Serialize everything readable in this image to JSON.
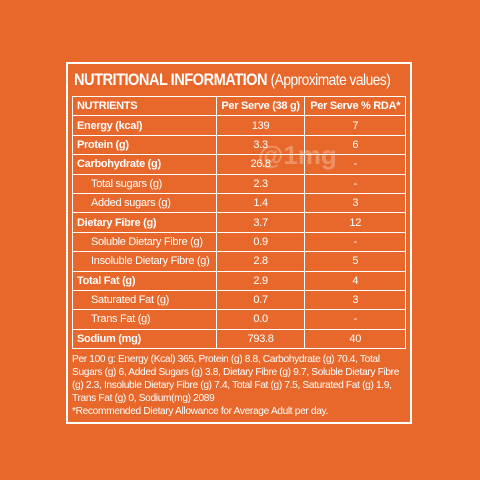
{
  "header": {
    "title": "NUTRITIONAL INFORMATION",
    "subtitle": "(Approximate values)"
  },
  "table": {
    "columns": [
      "NUTRIENTS",
      "Per Serve (38 g)",
      "Per Serve % RDA*"
    ],
    "rows": [
      [
        "Energy (kcal)",
        "139",
        "7"
      ],
      [
        "Protein (g)",
        "3.3",
        "6"
      ],
      [
        "Carbohydrate (g)",
        "26.8",
        "-"
      ],
      [
        "Total sugars (g)",
        "2.3",
        "-"
      ],
      [
        "Added sugars (g)",
        "1.4",
        "3"
      ],
      [
        "Dietary Fibre (g)",
        "3.7",
        "12"
      ],
      [
        "Soluble Dietary Fibre (g)",
        "0.9",
        "-"
      ],
      [
        "Insoluble Dietary Fibre (g)",
        "2.8",
        "5"
      ],
      [
        "Total Fat (g)",
        "2.9",
        "4"
      ],
      [
        "Saturated Fat (g)",
        "0.7",
        "3"
      ],
      [
        "Trans Fat (g)",
        "0.0",
        "-"
      ],
      [
        "Sodium (mg)",
        "793.8",
        "40"
      ]
    ]
  },
  "watermark": "@1mg",
  "footer": {
    "per100": "Per 100 g: Energy (Kcal) 365, Protein (g) 8.8, Carbohydrate (g) 70.4, Total Sugars (g) 6, Added Sugars (g) 3.8, Dietary Fibre (g) 9.7, Soluble Dietary Fibre (g) 2.3, Insoluble Dietary Fibre (g) 7.4, Total Fat (g) 7.5, Saturated Fat (g) 1.9, Trans Fat (g) 0, Sodium(mg) 2089",
    "note": "*Recommended Dietary Allowance for Average Adult per day."
  }
}
